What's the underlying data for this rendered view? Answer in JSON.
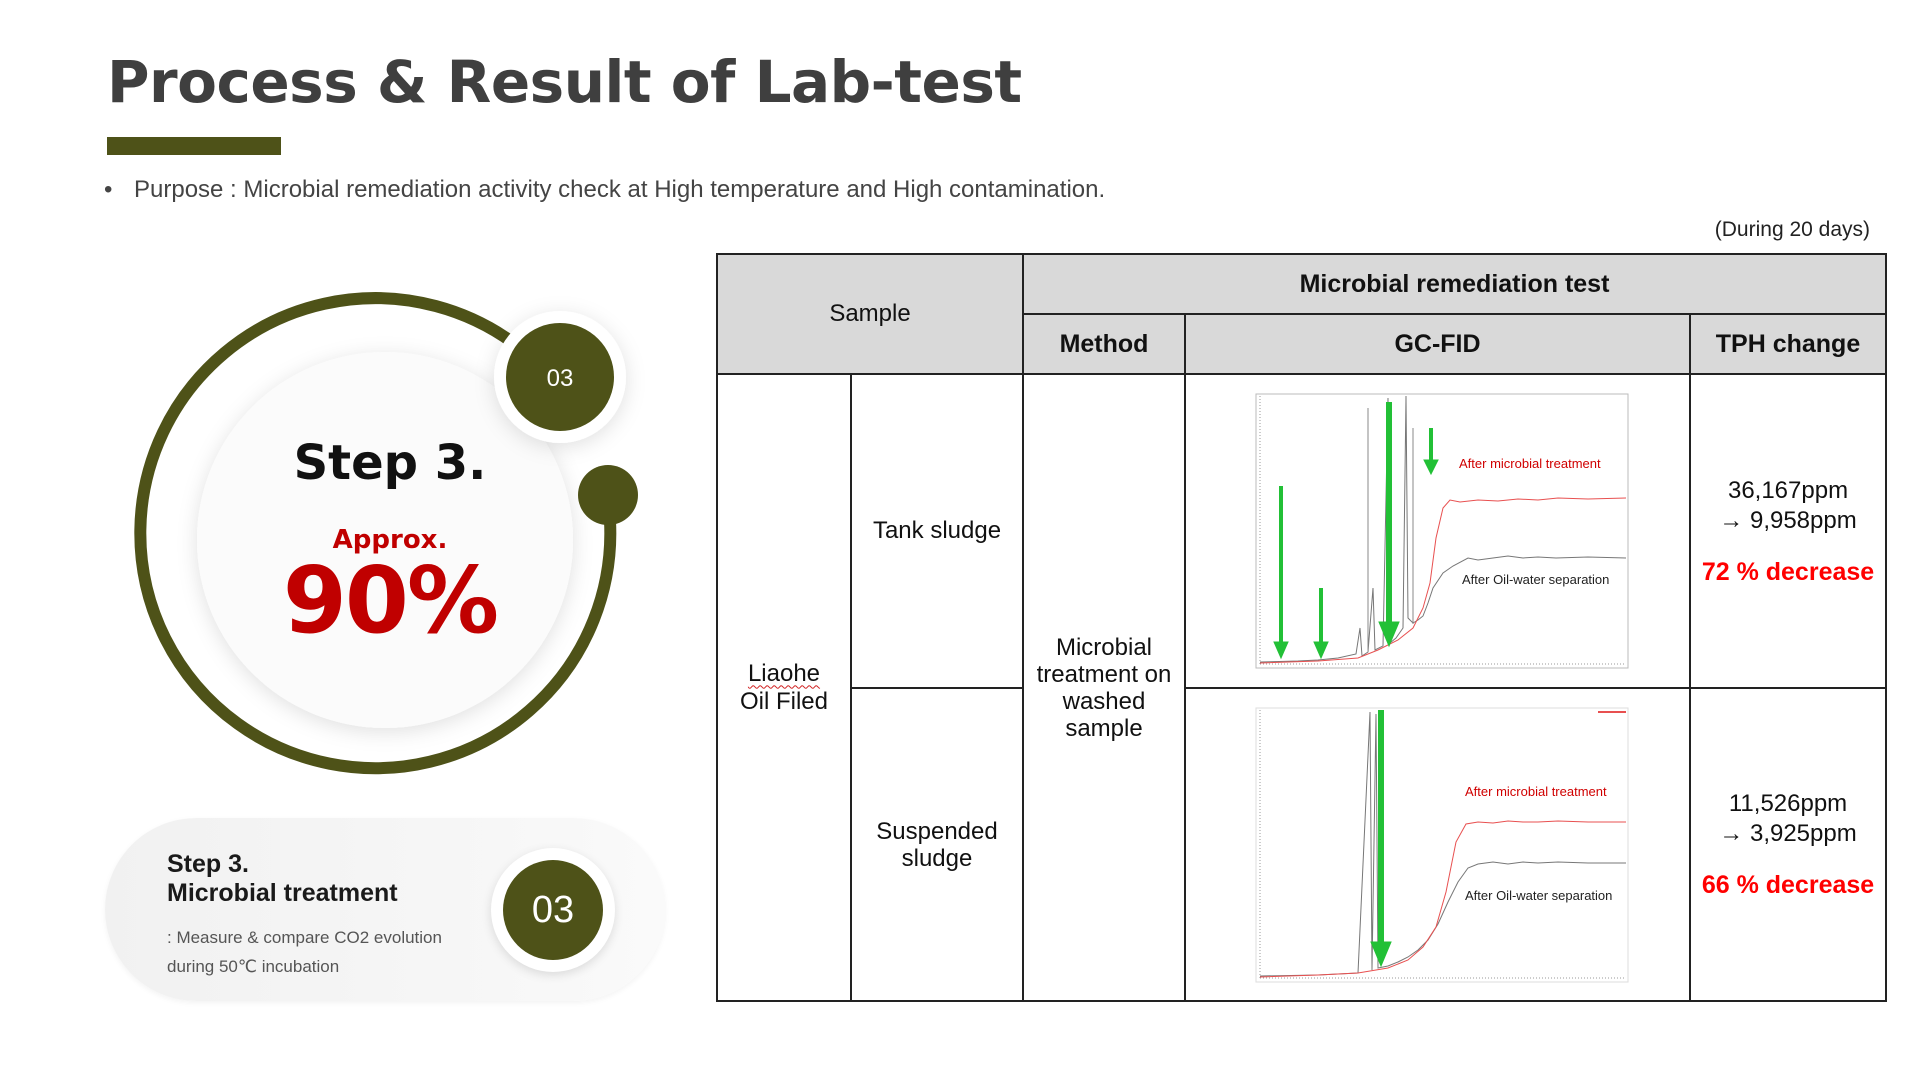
{
  "header": {
    "title": "Process & Result of Lab-test",
    "purpose": "Purpose : Microbial remediation activity check at High temperature and High contamination.",
    "period": "(During 20 days)"
  },
  "ring": {
    "badge": "03",
    "step_title": "Step 3.",
    "approx": "Approx.",
    "percent": "90%"
  },
  "pill": {
    "title_line1": "Step 3.",
    "title_line2": "Microbial treatment",
    "desc_line1": ": Measure & compare CO2 evolution",
    "desc_line2": "during 50℃ incubation",
    "badge": "03"
  },
  "table": {
    "header_sample": "Sample",
    "header_group": "Microbial remediation test",
    "header_method": "Method",
    "header_gcfid": "GC-FID",
    "header_tph": "TPH change",
    "site_line1": "Liaohe",
    "site_line2": "Oil Filed",
    "method_text": "Microbial treatment on washed sample",
    "rows": [
      {
        "sample": "Tank sludge",
        "tph_before": "36,167ppm",
        "tph_after": "→ 9,958ppm",
        "decrease": "72 % decrease",
        "label_red": "After microbial treatment",
        "label_black": "After Oil-water separation"
      },
      {
        "sample_line1": "Suspended",
        "sample_line2": "sludge",
        "tph_before": "11,526ppm",
        "tph_after": "→ 3,925ppm",
        "decrease": "66 % decrease",
        "label_red": "After microbial treatment",
        "label_black": "After Oil-water separation"
      }
    ]
  },
  "colors": {
    "olive": "#4e5218",
    "red": "#c00000",
    "arrow_green": "#22c036"
  }
}
